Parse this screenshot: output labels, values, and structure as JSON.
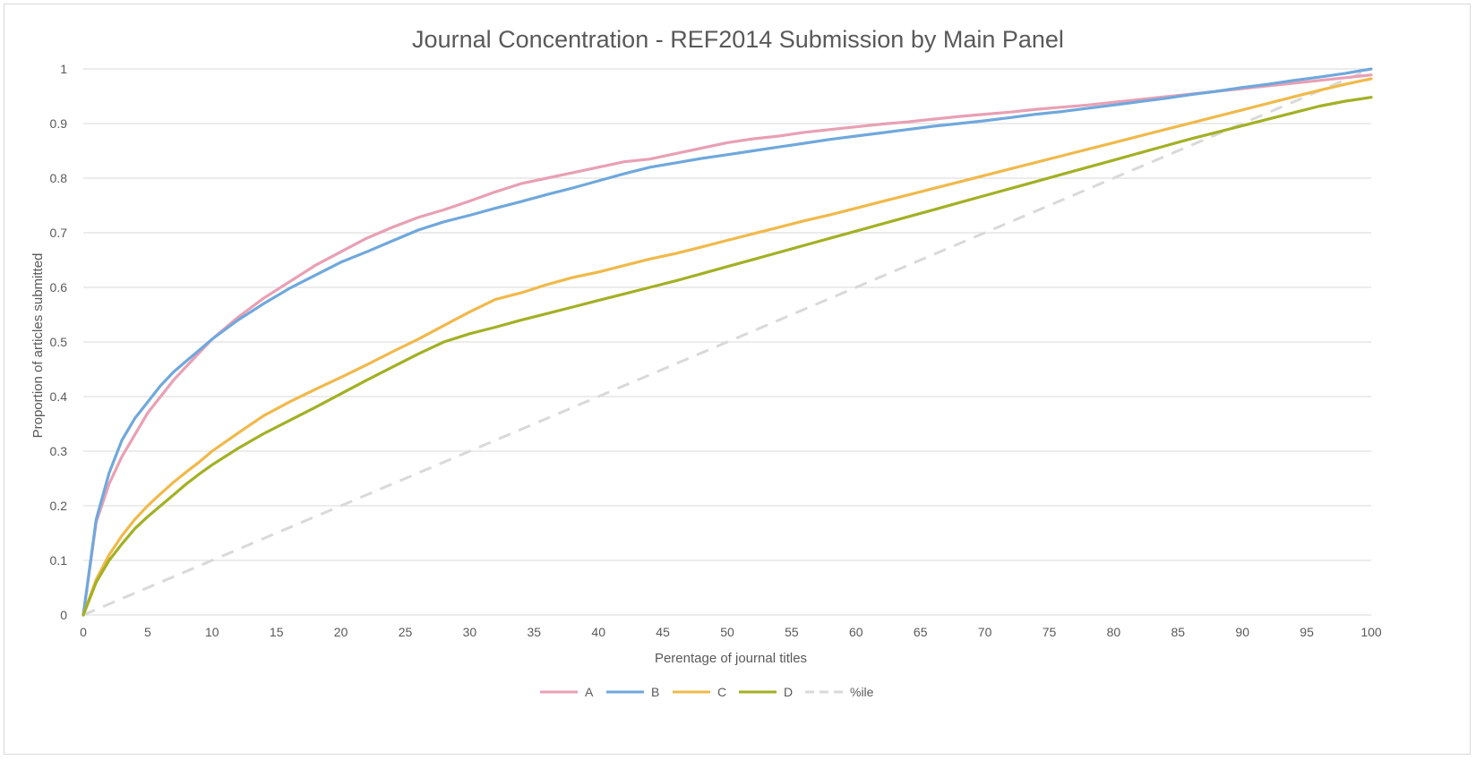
{
  "chart_data": {
    "type": "line",
    "title": "Journal Concentration - REF2014 Submission by Main Panel",
    "xlabel": "Perentage of journal titles",
    "ylabel": "Proportion of articles submitted",
    "xlim": [
      0,
      100
    ],
    "ylim": [
      0,
      1
    ],
    "x_ticks": [
      "0",
      "5",
      "10",
      "15",
      "20",
      "25",
      "30",
      "35",
      "40",
      "45",
      "50",
      "55",
      "60",
      "65",
      "70",
      "75",
      "80",
      "85",
      "90",
      "95",
      "100"
    ],
    "y_ticks": [
      "0",
      "0.1",
      "0.2",
      "0.3",
      "0.4",
      "0.5",
      "0.6",
      "0.7",
      "0.8",
      "0.9",
      "1"
    ],
    "grid": "horizontal",
    "legend_position": "bottom",
    "x": [
      0,
      1,
      2,
      3,
      4,
      5,
      6,
      7,
      8,
      9,
      10,
      12,
      14,
      16,
      18,
      20,
      22,
      24,
      26,
      28,
      30,
      32,
      34,
      36,
      38,
      40,
      42,
      44,
      46,
      48,
      50,
      52,
      54,
      56,
      58,
      60,
      62,
      64,
      66,
      68,
      70,
      72,
      74,
      76,
      78,
      80,
      82,
      84,
      86,
      88,
      90,
      92,
      94,
      96,
      98,
      100
    ],
    "series": [
      {
        "name": "A",
        "color": "#e8a0b4",
        "dash": false,
        "values": [
          0,
          0.17,
          0.24,
          0.29,
          0.33,
          0.37,
          0.4,
          0.43,
          0.455,
          0.48,
          0.505,
          0.545,
          0.58,
          0.61,
          0.64,
          0.665,
          0.69,
          0.71,
          0.728,
          0.742,
          0.758,
          0.775,
          0.79,
          0.8,
          0.81,
          0.82,
          0.83,
          0.835,
          0.845,
          0.855,
          0.865,
          0.872,
          0.877,
          0.884,
          0.889,
          0.894,
          0.899,
          0.903,
          0.908,
          0.913,
          0.917,
          0.921,
          0.926,
          0.93,
          0.934,
          0.939,
          0.944,
          0.949,
          0.954,
          0.959,
          0.964,
          0.969,
          0.974,
          0.979,
          0.984,
          0.989
        ]
      },
      {
        "name": "B",
        "color": "#6fa8dc",
        "dash": false,
        "values": [
          0,
          0.175,
          0.26,
          0.32,
          0.36,
          0.39,
          0.42,
          0.445,
          0.465,
          0.485,
          0.505,
          0.54,
          0.57,
          0.598,
          0.622,
          0.646,
          0.665,
          0.685,
          0.705,
          0.72,
          0.732,
          0.745,
          0.757,
          0.77,
          0.782,
          0.795,
          0.808,
          0.82,
          0.828,
          0.836,
          0.843,
          0.85,
          0.857,
          0.864,
          0.871,
          0.877,
          0.883,
          0.889,
          0.895,
          0.9,
          0.905,
          0.911,
          0.917,
          0.922,
          0.928,
          0.934,
          0.94,
          0.946,
          0.953,
          0.959,
          0.966,
          0.972,
          0.979,
          0.985,
          0.992,
          1.0
        ]
      },
      {
        "name": "C",
        "color": "#f0b94a",
        "dash": false,
        "values": [
          0,
          0.065,
          0.11,
          0.145,
          0.175,
          0.2,
          0.222,
          0.243,
          0.262,
          0.28,
          0.3,
          0.333,
          0.365,
          0.39,
          0.413,
          0.435,
          0.458,
          0.482,
          0.505,
          0.53,
          0.555,
          0.578,
          0.59,
          0.605,
          0.618,
          0.628,
          0.64,
          0.652,
          0.662,
          0.674,
          0.686,
          0.698,
          0.71,
          0.722,
          0.733,
          0.745,
          0.757,
          0.769,
          0.781,
          0.793,
          0.805,
          0.817,
          0.829,
          0.841,
          0.853,
          0.865,
          0.877,
          0.889,
          0.901,
          0.913,
          0.925,
          0.937,
          0.949,
          0.961,
          0.972,
          0.982
        ]
      },
      {
        "name": "D",
        "color": "#a3b024",
        "dash": false,
        "values": [
          0,
          0.06,
          0.1,
          0.13,
          0.158,
          0.18,
          0.2,
          0.22,
          0.24,
          0.258,
          0.275,
          0.305,
          0.332,
          0.356,
          0.38,
          0.405,
          0.43,
          0.454,
          0.478,
          0.5,
          0.515,
          0.527,
          0.54,
          0.552,
          0.564,
          0.576,
          0.588,
          0.6,
          0.612,
          0.625,
          0.638,
          0.651,
          0.664,
          0.677,
          0.69,
          0.703,
          0.716,
          0.729,
          0.742,
          0.755,
          0.768,
          0.781,
          0.794,
          0.807,
          0.82,
          0.833,
          0.846,
          0.859,
          0.872,
          0.884,
          0.896,
          0.908,
          0.92,
          0.932,
          0.941,
          0.948
        ]
      },
      {
        "name": "%ile",
        "color": "#d9d9d9",
        "dash": true,
        "values": [
          0,
          0.01,
          0.02,
          0.03,
          0.04,
          0.05,
          0.06,
          0.07,
          0.08,
          0.09,
          0.1,
          0.12,
          0.14,
          0.16,
          0.18,
          0.2,
          0.22,
          0.24,
          0.26,
          0.28,
          0.3,
          0.32,
          0.34,
          0.36,
          0.38,
          0.4,
          0.42,
          0.44,
          0.46,
          0.48,
          0.5,
          0.52,
          0.54,
          0.56,
          0.58,
          0.6,
          0.62,
          0.64,
          0.66,
          0.68,
          0.7,
          0.72,
          0.74,
          0.76,
          0.78,
          0.8,
          0.82,
          0.84,
          0.86,
          0.88,
          0.9,
          0.92,
          0.94,
          0.96,
          0.98,
          1.0
        ]
      }
    ]
  }
}
